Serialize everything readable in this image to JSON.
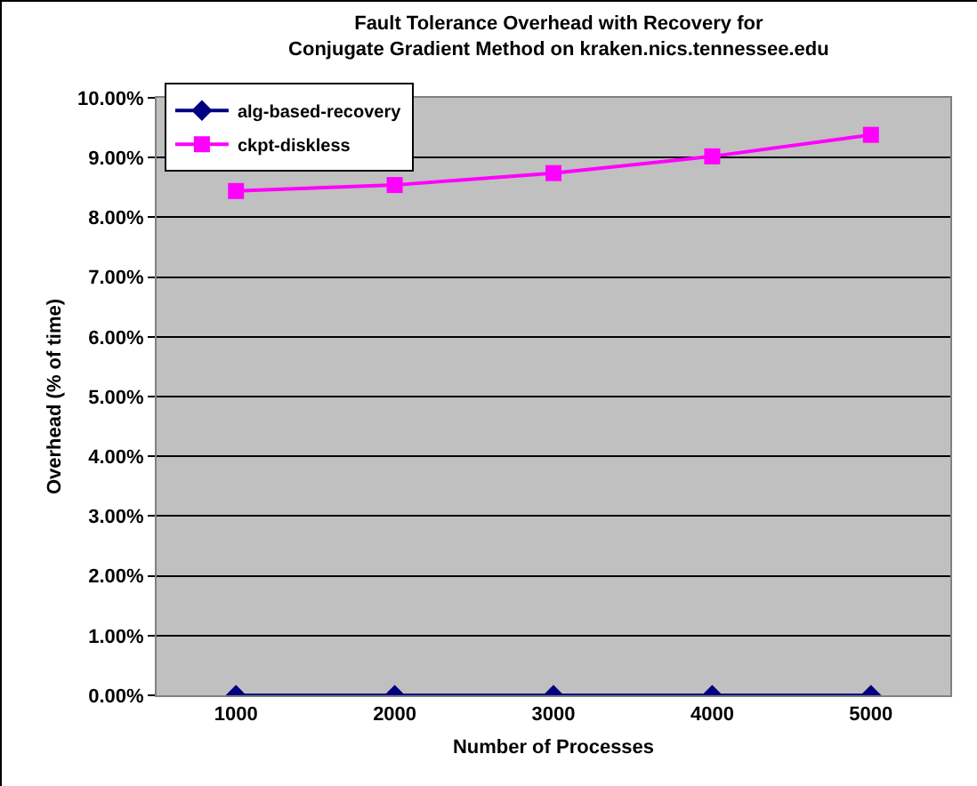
{
  "chart_data": {
    "type": "line",
    "title": "Fault Tolerance Overhead with Recovery for\nConjugate Gradient Method on kraken.nics.tennessee.edu",
    "xlabel": "Number of Processes",
    "ylabel": "Overhead (% of time)",
    "categories": [
      "1000",
      "2000",
      "3000",
      "4000",
      "5000"
    ],
    "series": [
      {
        "name": "alg-based-recovery",
        "color": "#000080",
        "marker": "diamond",
        "values": [
          0,
          0,
          0,
          0,
          0
        ]
      },
      {
        "name": "ckpt-diskless",
        "color": "#ff00ff",
        "marker": "square",
        "values": [
          8.44,
          8.54,
          8.74,
          9.02,
          9.38
        ]
      }
    ],
    "ylim": [
      0,
      10
    ],
    "yticks": [
      {
        "value": 0,
        "label": "0.00%"
      },
      {
        "value": 1,
        "label": "1.00%"
      },
      {
        "value": 2,
        "label": "2.00%"
      },
      {
        "value": 3,
        "label": "3.00%"
      },
      {
        "value": 4,
        "label": "4.00%"
      },
      {
        "value": 5,
        "label": "5.00%"
      },
      {
        "value": 6,
        "label": "6.00%"
      },
      {
        "value": 7,
        "label": "7.00%"
      },
      {
        "value": 8,
        "label": "8.00%"
      },
      {
        "value": 9,
        "label": "9.00%"
      },
      {
        "value": 10,
        "label": "10.00%"
      }
    ],
    "grid": "y",
    "legend": "top left",
    "line_style": "solid"
  }
}
